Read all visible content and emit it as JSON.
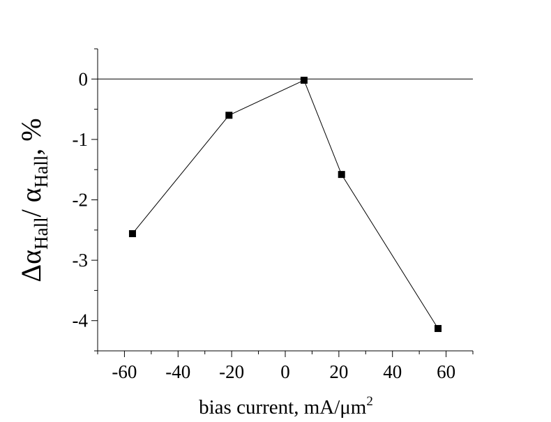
{
  "chart_data": {
    "type": "line",
    "title": "",
    "xlabel": "bias current, mA/μm",
    "xlabel_sup": "2",
    "ylabel": {
      "delta": "Δ",
      "alpha": "α",
      "sub": "Hall",
      "slash": "/ ",
      "unit": ", %"
    },
    "xlim": [
      -70,
      70
    ],
    "ylim": [
      -4.5,
      0.5
    ],
    "xticks": [
      -60,
      -40,
      -20,
      0,
      20,
      40,
      60
    ],
    "yticks": [
      0,
      -1,
      -2,
      -3,
      -4
    ],
    "zero_line": true,
    "grid": false,
    "series": [
      {
        "x": [
          -57,
          -21,
          7,
          21,
          57
        ],
        "y": [
          -2.56,
          -0.6,
          -0.02,
          -1.58,
          -4.13
        ]
      }
    ]
  }
}
